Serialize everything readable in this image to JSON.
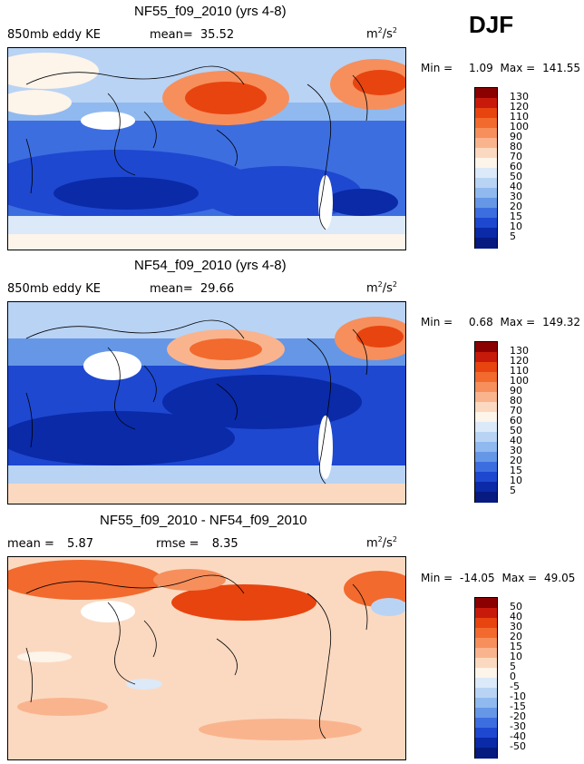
{
  "season": "DJF",
  "units_prefix": "m",
  "units_sup1": "2",
  "units_mid": "/s",
  "units_sup2": "2",
  "panels": [
    {
      "title": "NF55_f09_2010 (yrs 4-8)",
      "field": "850mb eddy KE",
      "mean_label": "mean=",
      "mean": "35.52",
      "min_label": "Min =",
      "min": "1.09",
      "max_label": "Max =",
      "max": "141.55"
    },
    {
      "title": "NF54_f09_2010 (yrs 4-8)",
      "field": "850mb eddy KE",
      "mean_label": "mean=",
      "mean": "29.66",
      "min_label": "Min =",
      "min": "0.68",
      "max_label": "Max =",
      "max": "149.32"
    },
    {
      "title": "NF55_f09_2010 - NF54_f09_2010",
      "mean_label": "mean =",
      "mean": "5.87",
      "rmse_label": "rmse =",
      "rmse": "8.35",
      "min_label": "Min =",
      "min": "-14.05",
      "max_label": "Max =",
      "max": "49.05"
    }
  ],
  "chart_data": [
    {
      "type": "heatmap",
      "title": "NF55_f09_2010 (yrs 4-8)",
      "variable": "850mb eddy KE",
      "units": "m^2/s^2",
      "mean": 35.52,
      "min": 1.09,
      "max": 141.55,
      "colorbar_levels": [
        "130",
        "120",
        "110",
        "100",
        "90",
        "80",
        "70",
        "60",
        "50",
        "40",
        "30",
        "20",
        "15",
        "10",
        "5"
      ],
      "colors": [
        "#8b0000",
        "#c81a0b",
        "#e8440f",
        "#f26a2e",
        "#f68f5c",
        "#f9b48e",
        "#fbd9c0",
        "#fdf4ea",
        "#dbe9f9",
        "#b9d3f4",
        "#90b9ef",
        "#6597e6",
        "#3d6ee0",
        "#1e48d0",
        "#0a2aa8",
        "#061a80"
      ]
    },
    {
      "type": "heatmap",
      "title": "NF54_f09_2010 (yrs 4-8)",
      "variable": "850mb eddy KE",
      "units": "m^2/s^2",
      "mean": 29.66,
      "min": 0.68,
      "max": 149.32,
      "colorbar_levels": [
        "130",
        "120",
        "110",
        "100",
        "90",
        "80",
        "70",
        "60",
        "50",
        "40",
        "30",
        "20",
        "15",
        "10",
        "5"
      ],
      "colors": [
        "#8b0000",
        "#c81a0b",
        "#e8440f",
        "#f26a2e",
        "#f68f5c",
        "#f9b48e",
        "#fbd9c0",
        "#fdf4ea",
        "#dbe9f9",
        "#b9d3f4",
        "#90b9ef",
        "#6597e6",
        "#3d6ee0",
        "#1e48d0",
        "#0a2aa8",
        "#061a80"
      ]
    },
    {
      "type": "heatmap",
      "title": "NF55_f09_2010 - NF54_f09_2010",
      "units": "m^2/s^2",
      "mean": 5.87,
      "rmse": 8.35,
      "min": -14.05,
      "max": 49.05,
      "colorbar_levels": [
        "50",
        "40",
        "30",
        "20",
        "15",
        "10",
        "5",
        "0",
        "-5",
        "-10",
        "-15",
        "-20",
        "-30",
        "-40",
        "-50"
      ],
      "colors": [
        "#8b0000",
        "#c81a0b",
        "#e8440f",
        "#f26a2e",
        "#f68f5c",
        "#f9b48e",
        "#fbd9c0",
        "#fdf4ea",
        "#dbe9f9",
        "#b9d3f4",
        "#90b9ef",
        "#6597e6",
        "#3d6ee0",
        "#1e48d0",
        "#0a2aa8",
        "#061a80"
      ]
    }
  ]
}
